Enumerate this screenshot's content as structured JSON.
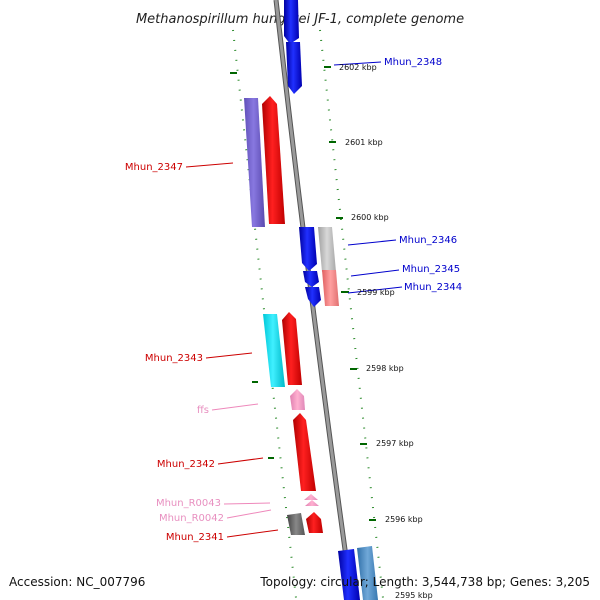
{
  "title": "Methanospirillum hungatei JF-1, complete genome",
  "accession_text": "Accession: NC_007796",
  "topology_text": "Topology: circular; Length: 3,544,738 bp; Genes: 3,205",
  "colors": {
    "forward": "#ee0000",
    "reverse": "#0000dd",
    "rna": "#ee88bb",
    "backbone": "#888888",
    "ticks": "#007700"
  },
  "kbp_labels": [
    {
      "text": "2602 kbp"
    },
    {
      "text": "2601 kbp"
    },
    {
      "text": "2600 kbp"
    },
    {
      "text": "2599 kbp"
    },
    {
      "text": "2598 kbp"
    },
    {
      "text": "2597 kbp"
    },
    {
      "text": "2596 kbp"
    },
    {
      "text": "2595 kbp"
    }
  ],
  "gene_labels": [
    {
      "name": "Mhun_2348",
      "strand": "reverse"
    },
    {
      "name": "Mhun_2347",
      "strand": "forward"
    },
    {
      "name": "Mhun_2346",
      "strand": "reverse"
    },
    {
      "name": "Mhun_2345",
      "strand": "reverse"
    },
    {
      "name": "Mhun_2344",
      "strand": "reverse"
    },
    {
      "name": "Mhun_2343",
      "strand": "forward"
    },
    {
      "name": "ffs",
      "strand": "rna"
    },
    {
      "name": "Mhun_2342",
      "strand": "forward"
    },
    {
      "name": "Mhun_R0043",
      "strand": "rna"
    },
    {
      "name": "Mhun_R0042",
      "strand": "rna"
    },
    {
      "name": "Mhun_2341",
      "strand": "forward"
    }
  ]
}
